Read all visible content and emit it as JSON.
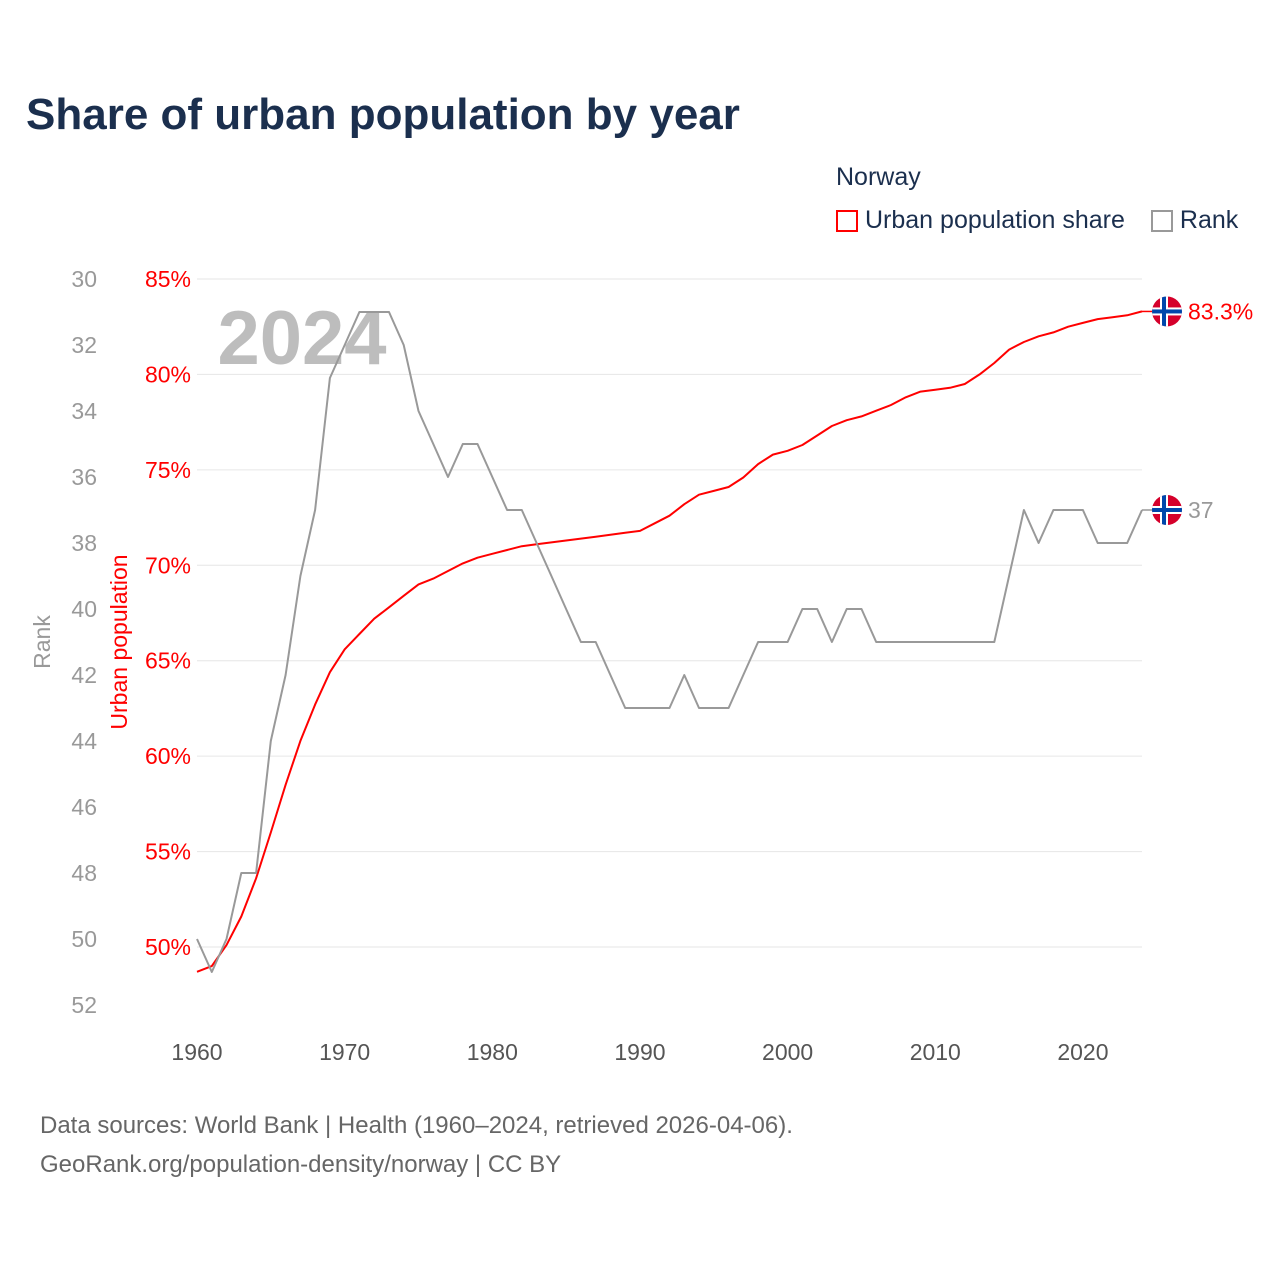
{
  "title": "Share of urban population by year",
  "legend": {
    "country": "Norway",
    "items": [
      {
        "label": "Urban population share",
        "color": "#ff0000"
      },
      {
        "label": "Rank",
        "color": "#999999"
      }
    ]
  },
  "footer": {
    "line1": "Data sources: World Bank | Health (1960–2024, retrieved 2026-04-06).",
    "line2": "GeoRank.org/population-density/norway | CC BY"
  },
  "chart_data": {
    "type": "line",
    "title": "Share of urban population by year",
    "watermark_year": "2024",
    "xlabel": "",
    "x_ticks": [
      1960,
      1970,
      1980,
      1990,
      2000,
      2010,
      2020
    ],
    "xlim": [
      1960,
      2024
    ],
    "y_left": {
      "label": "Rank",
      "ticks": [
        30,
        32,
        34,
        36,
        38,
        40,
        42,
        44,
        46,
        48,
        50,
        52
      ],
      "lim": [
        30,
        52
      ],
      "inverted": true,
      "color": "#999999"
    },
    "y_right": {
      "label": "Urban population",
      "ticks": [
        50,
        55,
        60,
        65,
        70,
        75,
        80,
        85
      ],
      "tick_suffix": "%",
      "lim": [
        50,
        85
      ],
      "color": "#ff0000"
    },
    "grid": true,
    "legend_position": "top-right",
    "x": [
      1960,
      1961,
      1962,
      1963,
      1964,
      1965,
      1966,
      1967,
      1968,
      1969,
      1970,
      1971,
      1972,
      1973,
      1974,
      1975,
      1976,
      1977,
      1978,
      1979,
      1980,
      1981,
      1982,
      1983,
      1984,
      1985,
      1986,
      1987,
      1988,
      1989,
      1990,
      1991,
      1992,
      1993,
      1994,
      1995,
      1996,
      1997,
      1998,
      1999,
      2000,
      2001,
      2002,
      2003,
      2004,
      2005,
      2006,
      2007,
      2008,
      2009,
      2010,
      2011,
      2012,
      2013,
      2014,
      2015,
      2016,
      2017,
      2018,
      2019,
      2020,
      2021,
      2022,
      2023,
      2024
    ],
    "series": [
      {
        "name": "Urban population share",
        "axis": "right",
        "color": "#ff0000",
        "end_label": "83.3%",
        "values": [
          48.7,
          49.0,
          50.1,
          51.6,
          53.6,
          56.0,
          58.5,
          60.8,
          62.7,
          64.4,
          65.6,
          66.4,
          67.2,
          67.8,
          68.4,
          69.0,
          69.3,
          69.7,
          70.1,
          70.4,
          70.6,
          70.8,
          71.0,
          71.1,
          71.2,
          71.3,
          71.4,
          71.5,
          71.6,
          71.7,
          71.8,
          72.2,
          72.6,
          73.2,
          73.7,
          73.9,
          74.1,
          74.6,
          75.3,
          75.8,
          76.0,
          76.3,
          76.8,
          77.3,
          77.6,
          77.8,
          78.1,
          78.4,
          78.8,
          79.1,
          79.2,
          79.3,
          79.5,
          80.0,
          80.6,
          81.3,
          81.7,
          82.0,
          82.2,
          82.5,
          82.7,
          82.9,
          83.0,
          83.1,
          83.3
        ]
      },
      {
        "name": "Rank",
        "axis": "left",
        "color": "#999999",
        "end_label": "37",
        "values": [
          50,
          51,
          50,
          48,
          48,
          44,
          42,
          39,
          37,
          33,
          32,
          31,
          31,
          31,
          32,
          34,
          35,
          36,
          35,
          35,
          36,
          37,
          37,
          38,
          39,
          40,
          41,
          41,
          42,
          43,
          43,
          43,
          43,
          42,
          43,
          43,
          43,
          42,
          41,
          41,
          41,
          40,
          40,
          41,
          40,
          40,
          41,
          41,
          41,
          41,
          41,
          41,
          41,
          41,
          41,
          39,
          37,
          38,
          37,
          37,
          37,
          38,
          38,
          38,
          37
        ]
      }
    ]
  }
}
